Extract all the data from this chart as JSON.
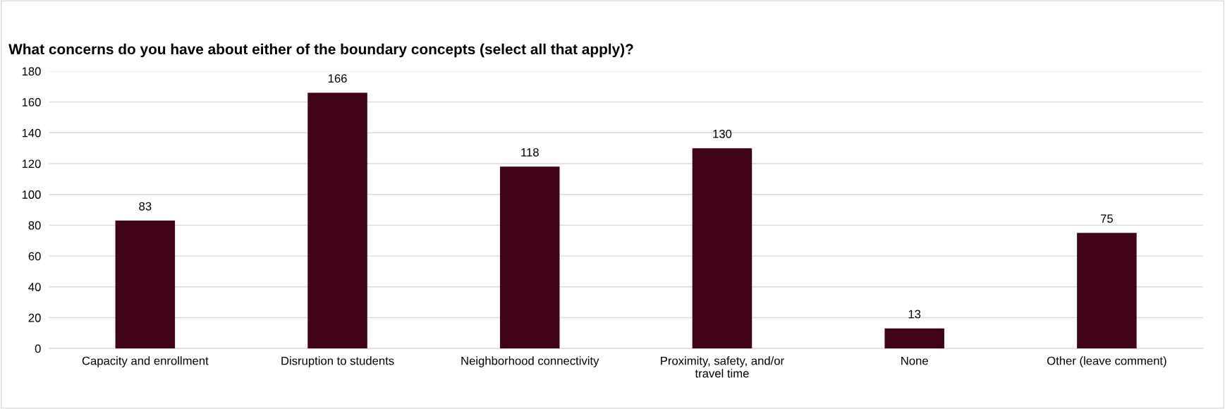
{
  "chart_data": {
    "type": "bar",
    "title": "What concerns do you have about either of the boundary concepts (select all that apply)?",
    "categories": [
      "Capacity and enrollment",
      "Disruption to students",
      "Neighborhood connectivity",
      "Proximity, safety, and/or\ntravel time",
      "None",
      "Other (leave comment)"
    ],
    "values": [
      83,
      166,
      118,
      130,
      13,
      75
    ],
    "color": "#42031a",
    "ylim": [
      0,
      180
    ],
    "yticks": [
      0,
      20,
      40,
      60,
      80,
      100,
      120,
      140,
      160,
      180
    ],
    "grid": "y",
    "data_labels": true
  }
}
